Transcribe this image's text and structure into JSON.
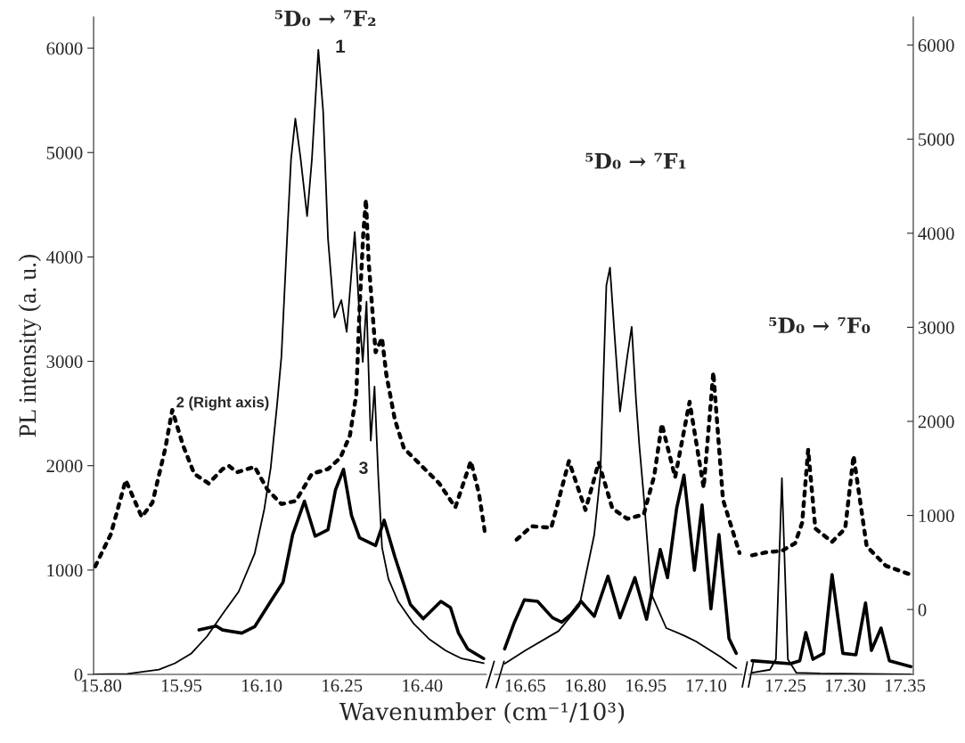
{
  "chart_data": [
    {
      "type": "line",
      "title": "⁵D₀ → ⁷F₂",
      "ylabel": "PL intensity (a. u.)",
      "xlim": [
        15.786,
        16.52
      ],
      "xticks": [
        {
          "value": 15.8,
          "label": "15.80"
        },
        {
          "value": 15.95,
          "label": "15.95"
        },
        {
          "value": 16.1,
          "label": "16.10"
        },
        {
          "value": 16.25,
          "label": "16.25"
        },
        {
          "value": 16.4,
          "label": "16.40"
        }
      ],
      "ylim": [
        0,
        6300
      ],
      "yticks": [
        0,
        1000,
        2000,
        3000,
        4000,
        5000,
        6000
      ],
      "y2lim": [
        -690,
        6300
      ],
      "grid": false,
      "legend": false,
      "marker": "none",
      "annotations": [
        "1",
        "2 (Right axis)",
        "3"
      ],
      "series": [
        {
          "color": "#000000",
          "line_style": "solid",
          "x": [
            15.789,
            15.849,
            15.908,
            15.938,
            15.968,
            15.998,
            16.027,
            16.057,
            16.087,
            16.105,
            16.117,
            16.129,
            16.137,
            16.149,
            16.155,
            16.163,
            16.173,
            16.185,
            16.194,
            16.206,
            16.215,
            16.224,
            16.236,
            16.249,
            16.259,
            16.274,
            16.283,
            16.289,
            16.296,
            16.3,
            16.304,
            16.311,
            16.318,
            16.325,
            16.337,
            16.355,
            16.384,
            16.414,
            16.444,
            16.474,
            16.515
          ],
          "values": [
            0,
            6,
            46,
            107,
            198,
            365,
            579,
            792,
            1157,
            1584,
            1980,
            2589,
            3046,
            4330,
            4937,
            5326,
            4937,
            4390,
            4937,
            5985,
            5393,
            4178,
            3419,
            3586,
            3282,
            4239,
            3419,
            2994,
            3570,
            2900,
            2240,
            2757,
            1900,
            1218,
            914,
            700,
            487,
            335,
            228,
            152,
            107
          ]
        },
        {
          "color": "#000000",
          "line_style": "dotted",
          "axis": "y2",
          "x": [
            15.789,
            15.818,
            15.846,
            15.876,
            15.896,
            15.92,
            15.933,
            15.953,
            15.974,
            16.001,
            16.027,
            16.039,
            16.054,
            16.087,
            16.111,
            16.137,
            16.164,
            16.194,
            16.224,
            16.247,
            16.265,
            16.277,
            16.283,
            16.29,
            16.295,
            16.3,
            16.313,
            16.325,
            16.333,
            16.349,
            16.366,
            16.396,
            16.432,
            16.462,
            16.491,
            16.506,
            16.518
          ],
          "values": [
            459,
            798,
            1374,
            984,
            1137,
            1713,
            2121,
            1747,
            1443,
            1340,
            1493,
            1527,
            1459,
            1517,
            1273,
            1121,
            1154,
            1443,
            1493,
            1612,
            1849,
            2290,
            3200,
            4000,
            4360,
            3700,
            2735,
            2887,
            2500,
            2019,
            1713,
            1544,
            1340,
            1086,
            1577,
            1238,
            798
          ]
        },
        {
          "color": "#000000",
          "line_style": "solid",
          "x": [
            15.983,
            16.015,
            16.027,
            16.063,
            16.087,
            16.117,
            16.14,
            16.158,
            16.18,
            16.2,
            16.224,
            16.238,
            16.253,
            16.268,
            16.283,
            16.313,
            16.329,
            16.349,
            16.378,
            16.402,
            16.435,
            16.453,
            16.468,
            16.485,
            16.515
          ],
          "values": [
            426,
            463,
            426,
            396,
            457,
            700,
            883,
            1340,
            1660,
            1325,
            1386,
            1767,
            1965,
            1523,
            1310,
            1234,
            1477,
            1127,
            670,
            533,
            700,
            640,
            396,
            244,
            152
          ]
        }
      ]
    },
    {
      "type": "line",
      "title": "⁵D₀ → ⁷F₁",
      "xlabel": "Wavenumber (cm⁻¹/10³)",
      "xlim": [
        16.574,
        17.19
      ],
      "xticks": [
        {
          "value": 16.65,
          "label": "16.65"
        },
        {
          "value": 16.8,
          "label": "16.80"
        },
        {
          "value": 16.95,
          "label": "16.95"
        },
        {
          "value": 17.1,
          "label": "17.10"
        }
      ],
      "ylim": [
        0,
        6000
      ],
      "yticks": [
        0,
        1000,
        2000,
        3000,
        4000,
        5000,
        6000
      ],
      "y2lim": [
        -690,
        6000
      ],
      "y2ticks": [
        0,
        1000,
        2000,
        3000,
        4000,
        5000,
        6000
      ],
      "tick_labels": "x",
      "grid": false,
      "legend": false,
      "marker": "none",
      "series": [
        {
          "color": "#000000",
          "line_style": "solid",
          "x": [
            16.599,
            16.651,
            16.733,
            16.785,
            16.822,
            16.837,
            16.852,
            16.861,
            16.871,
            16.886,
            16.904,
            16.915,
            16.926,
            16.934,
            16.945,
            16.964,
            17.001,
            17.045,
            17.075,
            17.134,
            17.175
          ],
          "values": [
            102,
            230,
            415,
            657,
            1340,
            1909,
            3727,
            3898,
            3330,
            2519,
            3046,
            3330,
            2619,
            2193,
            1709,
            770,
            444,
            373,
            316,
            173,
            60
          ]
        },
        {
          "color": "#000000",
          "line_style": "dotted",
          "axis": "y2",
          "x": [
            16.629,
            16.666,
            16.715,
            16.759,
            16.8,
            16.833,
            16.867,
            16.904,
            16.945,
            16.971,
            16.99,
            17.023,
            17.059,
            17.094,
            17.118,
            17.142,
            17.183
          ],
          "values": [
            750,
            893,
            877,
            1589,
            1067,
            1573,
            1083,
            972,
            1019,
            1431,
            1985,
            1415,
            2222,
            1304,
            2538,
            1178,
            608
          ]
        },
        {
          "color": "#000000",
          "line_style": "solid",
          "x": [
            16.599,
            16.622,
            16.648,
            16.681,
            16.718,
            16.741,
            16.763,
            16.789,
            16.822,
            16.856,
            16.886,
            16.923,
            16.952,
            16.986,
            17.004,
            17.027,
            17.045,
            17.071,
            17.09,
            17.112,
            17.132,
            17.157,
            17.175
          ],
          "values": [
            245,
            486,
            714,
            700,
            543,
            501,
            572,
            700,
            557,
            941,
            543,
            927,
            529,
            1197,
            927,
            1596,
            1909,
            998,
            1624,
            629,
            1340,
            344,
            202
          ]
        }
      ]
    },
    {
      "type": "line",
      "title": "⁵D₀ → ⁷F₀",
      "xlim": [
        17.219,
        17.357
      ],
      "xticks": [
        {
          "value": 17.25,
          "label": "17.25"
        },
        {
          "value": 17.3,
          "label": "17.30"
        },
        {
          "value": 17.35,
          "label": "17.35"
        }
      ],
      "ylim": [
        0,
        6300
      ],
      "y2lim": [
        -690,
        6300
      ],
      "y2ticks": [
        0,
        1000,
        2000,
        3000,
        4000,
        5000,
        6000
      ],
      "grid": false,
      "legend": false,
      "marker": "none",
      "series": [
        {
          "color": "#000000",
          "line_style": "solid",
          "x": [
            17.222,
            17.237,
            17.242,
            17.247,
            17.252,
            17.259,
            17.279,
            17.355
          ],
          "values": [
            17,
            45,
            145,
            1880,
            145,
            17,
            9,
            0
          ]
        },
        {
          "color": "#000000",
          "line_style": "dotted",
          "axis": "y2",
          "x": [
            17.222,
            17.234,
            17.247,
            17.258,
            17.264,
            17.269,
            17.275,
            17.289,
            17.3,
            17.307,
            17.318,
            17.334,
            17.355
          ],
          "values": [
            576,
            608,
            624,
            703,
            924,
            1700,
            861,
            719,
            861,
            1636,
            671,
            465,
            370
          ]
        },
        {
          "color": "#000000",
          "line_style": "solid",
          "x": [
            17.222,
            17.254,
            17.262,
            17.267,
            17.273,
            17.282,
            17.289,
            17.298,
            17.309,
            17.317,
            17.322,
            17.33,
            17.337,
            17.355
          ],
          "values": [
            131,
            102,
            131,
            401,
            145,
            202,
            956,
            202,
            188,
            685,
            230,
            444,
            131,
            74
          ]
        }
      ]
    }
  ]
}
